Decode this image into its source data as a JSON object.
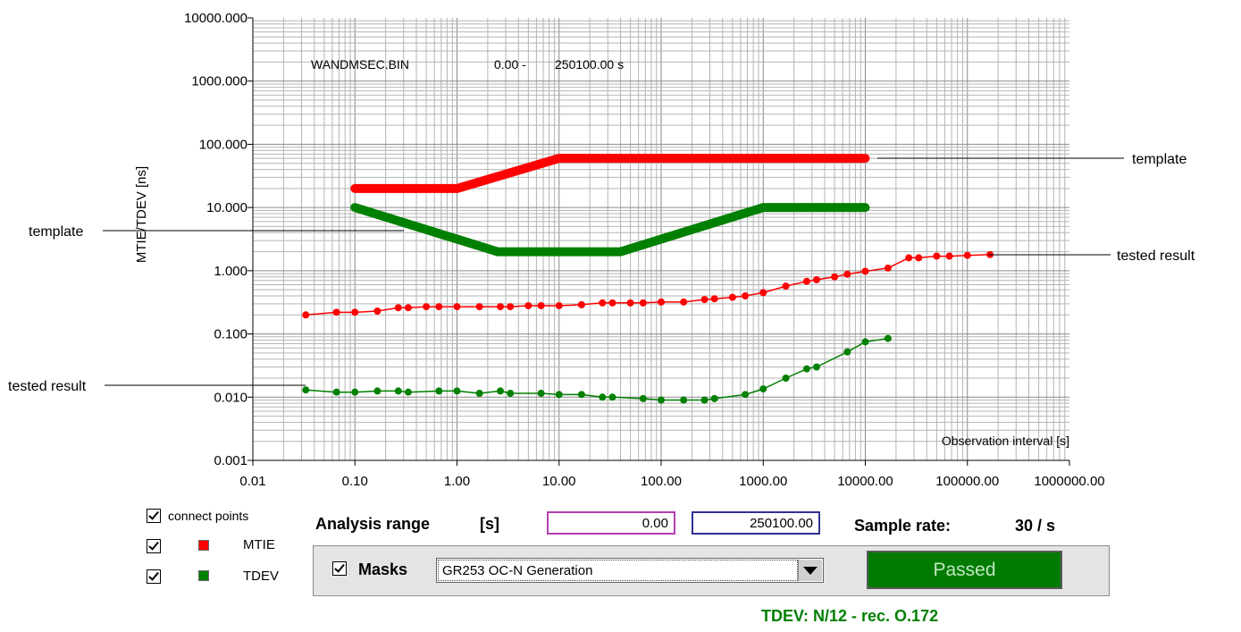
{
  "chart_data": {
    "type": "line",
    "x_scale": "log",
    "y_scale": "log",
    "xlim": [
      0.01,
      1000000
    ],
    "ylim": [
      0.001,
      10000
    ],
    "grid": true,
    "ylabel": "MTIE/TDEV [ns]",
    "xlabel": "Observation interval  [s]",
    "x_tick_labels": [
      "0.01",
      "0.10",
      "1.00",
      "10.00",
      "100.00",
      "1000.00",
      "10000.00",
      "100000.00",
      "1000000.00"
    ],
    "y_tick_labels": [
      "0.001",
      "0.010",
      "0.100",
      "1.000",
      "10.000",
      "100.000",
      "1000.000",
      "10000.000"
    ],
    "header": {
      "file": "WANDMSEC.BIN",
      "range_start": "0.00 -",
      "range_end": "250100.00 s"
    },
    "series": [
      {
        "role": "mtie_template",
        "color": "#ff0000",
        "x": [
          0.1,
          1,
          10,
          10000
        ],
        "y": [
          20,
          20,
          60,
          60
        ]
      },
      {
        "role": "tdev_template",
        "color": "#008000",
        "x": [
          0.1,
          2.5,
          40,
          1000,
          10000
        ],
        "y": [
          10,
          2,
          2,
          10,
          10
        ]
      },
      {
        "role": "mtie_result",
        "color": "#ff0000",
        "x": [
          0.033,
          0.066,
          0.1,
          0.166,
          0.266,
          0.333,
          0.5,
          0.666,
          1,
          1.66,
          2.66,
          3.33,
          5,
          6.66,
          10,
          16.6,
          26.6,
          33.3,
          50,
          66.6,
          100,
          166,
          266,
          333,
          500,
          666,
          1000,
          1666,
          2666,
          3333,
          5000,
          6666,
          10000,
          16666,
          26666,
          33333,
          50000,
          66666,
          100000,
          166666
        ],
        "y": [
          0.2,
          0.22,
          0.22,
          0.23,
          0.26,
          0.26,
          0.27,
          0.27,
          0.27,
          0.27,
          0.27,
          0.27,
          0.28,
          0.28,
          0.28,
          0.29,
          0.31,
          0.31,
          0.31,
          0.31,
          0.32,
          0.32,
          0.35,
          0.36,
          0.38,
          0.4,
          0.45,
          0.57,
          0.68,
          0.72,
          0.8,
          0.88,
          0.98,
          1.1,
          1.6,
          1.6,
          1.7,
          1.7,
          1.75,
          1.8
        ]
      },
      {
        "role": "tdev_result",
        "color": "#008000",
        "x": [
          0.033,
          0.066,
          0.1,
          0.166,
          0.266,
          0.333,
          0.666,
          1,
          1.66,
          2.66,
          3.33,
          6.66,
          10,
          16.6,
          26.6,
          33.3,
          66.6,
          100,
          166,
          266,
          333,
          666,
          1000,
          1666,
          2666,
          3333,
          6666,
          10000,
          16666
        ],
        "y": [
          0.013,
          0.012,
          0.012,
          0.0125,
          0.0125,
          0.012,
          0.0125,
          0.0125,
          0.0115,
          0.0125,
          0.0115,
          0.0115,
          0.011,
          0.011,
          0.01,
          0.01,
          0.0095,
          0.009,
          0.009,
          0.009,
          0.0095,
          0.011,
          0.0135,
          0.02,
          0.028,
          0.03,
          0.052,
          0.075,
          0.085
        ]
      }
    ]
  },
  "callouts": {
    "template_right": "template",
    "template_left": "template",
    "tested_right": "tested result",
    "tested_left": "tested result"
  },
  "legend": {
    "connect_points": "connect points",
    "mtie": "MTIE",
    "tdev": "TDEV",
    "mtie_color": "#ff0000",
    "tdev_color": "#008000"
  },
  "analysis": {
    "label": "Analysis range",
    "unit": "[s]",
    "start": "0.00",
    "end": "250100.00",
    "start_border": "#b040b0",
    "end_border": "#303090"
  },
  "sample_rate": {
    "label": "Sample rate:",
    "value": "30 / s"
  },
  "masks": {
    "label": "Masks",
    "selected": "GR253 OC-N Generation"
  },
  "status": {
    "text": "Passed",
    "color": "#007a00"
  },
  "footer": {
    "text": "TDEV: N/12 - rec. O.172",
    "color": "#008000"
  }
}
